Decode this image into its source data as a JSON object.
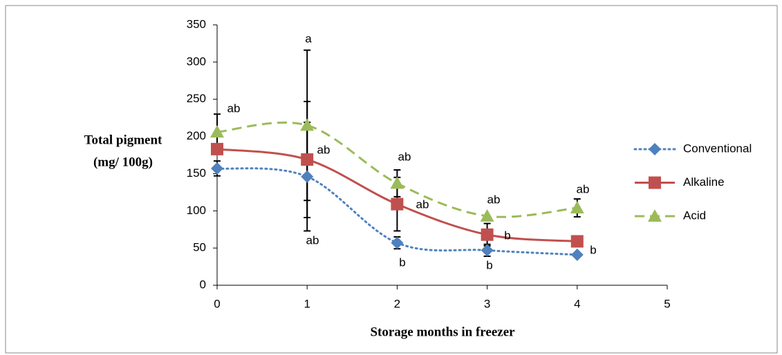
{
  "chart_data": {
    "type": "line",
    "ylabel": [
      "Total pigment",
      "(mg/ 100g)"
    ],
    "xlabel": "Storage months in freezer",
    "x": [
      0,
      1,
      2,
      3,
      4
    ],
    "xlim": [
      0,
      5
    ],
    "xticks": [
      0,
      1,
      2,
      3,
      4,
      5
    ],
    "ylim": [
      0,
      350
    ],
    "yticks": [
      0,
      50,
      100,
      150,
      200,
      250,
      300,
      350
    ],
    "grid": false,
    "legend": "right",
    "series": [
      {
        "name": "Conventional",
        "color": "#4f81bd",
        "marker": "diamond",
        "dash": "dotted",
        "values": [
          157,
          146,
          57,
          47,
          41
        ],
        "errors": [
          10,
          73,
          8,
          8,
          null
        ]
      },
      {
        "name": "Alkaline",
        "color": "#c0504d",
        "marker": "square",
        "dash": "solid",
        "values": [
          183,
          169,
          109,
          68,
          59
        ],
        "errors": [
          null,
          78,
          36,
          15,
          null
        ]
      },
      {
        "name": "Acid",
        "color": "#9bbb59",
        "marker": "triangle",
        "dash": "dashed",
        "values": [
          206,
          215,
          137,
          93,
          104
        ],
        "errors": [
          24,
          101,
          18,
          null,
          12
        ]
      }
    ],
    "annotations": [
      "ab",
      "a",
      "ab",
      "ab",
      "ab",
      "ab",
      "b",
      "ab",
      "b",
      "b",
      "ab",
      "b"
    ]
  }
}
